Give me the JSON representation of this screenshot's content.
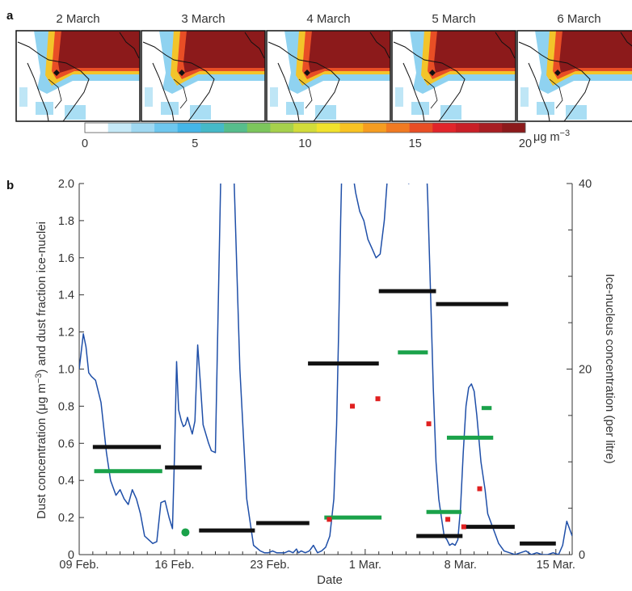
{
  "panel_a": {
    "label": "a",
    "map_dates": [
      "2 March",
      "3 March",
      "4 March",
      "5 March",
      "6 March"
    ],
    "colorbar": {
      "ticks": [
        "0",
        "5",
        "10",
        "15",
        "20"
      ],
      "unit_main": "μg m",
      "unit_exp": "−3",
      "range": [
        0,
        20
      ],
      "colors": [
        "#ffffff",
        "#c6e9f7",
        "#9fd8f1",
        "#6ec7ee",
        "#45b6e8",
        "#45b9c8",
        "#56bd8c",
        "#7cc65c",
        "#a6d14c",
        "#d2dc3a",
        "#f1e22c",
        "#f8c323",
        "#f59d21",
        "#f07a22",
        "#e84e25",
        "#e1252a",
        "#c91f26",
        "#a81e22",
        "#8c1a1b"
      ]
    }
  },
  "chart_data": {
    "type": "line",
    "label": "b",
    "xlabel": "Date",
    "ylabel_left_main": "Dust concentration (μg m",
    "ylabel_left_exp": "−3",
    "ylabel_left_tail": ") and dust fraction ice-nuclei",
    "ylabel_right": "Ice-nucleus concentration (per litre)",
    "ylim_left": [
      0,
      2.0
    ],
    "ylim_right": [
      0,
      40
    ],
    "x_ticks": [
      {
        "day": 0,
        "label": "09 Feb."
      },
      {
        "day": 7,
        "label": "16 Feb."
      },
      {
        "day": 14,
        "label": "23 Feb."
      },
      {
        "day": 21,
        "label": "1 Mar."
      },
      {
        "day": 28,
        "label": "8 Mar."
      },
      {
        "day": 35,
        "label": "15 Mar."
      }
    ],
    "xlim": [
      0,
      36.2
    ],
    "y_ticks_left": [
      "0",
      "0.2",
      "0.4",
      "0.6",
      "0.8",
      "1.0",
      "1.2",
      "1.4",
      "1.6",
      "1.8",
      "2.0"
    ],
    "y_ticks_right": [
      "0",
      "20",
      "40"
    ],
    "dust_line": {
      "color": "#1f4fa8",
      "x": [
        0,
        0.3,
        0.5,
        0.7,
        0.9,
        1.2,
        1.6,
        2.0,
        2.3,
        2.7,
        3.0,
        3.3,
        3.6,
        3.9,
        4.2,
        4.5,
        4.8,
        5.1,
        5.4,
        5.7,
        6.0,
        6.3,
        6.6,
        6.85,
        7.0,
        7.15,
        7.3,
        7.5,
        7.65,
        7.8,
        7.95,
        8.1,
        8.3,
        8.5,
        8.7,
        8.9,
        9.1,
        9.3,
        9.5,
        9.7,
        10.0,
        10.4,
        10.8,
        11.3,
        11.8,
        12.3,
        12.8,
        13.3,
        13.6,
        13.9,
        14.2,
        14.5,
        14.8,
        15.1,
        15.4,
        15.7,
        15.95,
        16.1,
        16.3,
        16.6,
        16.9,
        17.2,
        17.5,
        17.8,
        18.1,
        18.4,
        18.7,
        18.9,
        19.05,
        19.2,
        19.35,
        19.5,
        19.7,
        19.9,
        20.1,
        20.3,
        20.6,
        20.9,
        21.2,
        21.5,
        21.8,
        22.1,
        22.4,
        22.7,
        23.0,
        23.3,
        23.6,
        23.9,
        24.2,
        24.5,
        24.8,
        25.0,
        25.2,
        25.4,
        25.6,
        25.8,
        26.0,
        26.2,
        26.4,
        26.6,
        26.8,
        27.0,
        27.2,
        27.4,
        27.6,
        27.8,
        28.0,
        28.2,
        28.4,
        28.6,
        28.8,
        29.0,
        29.2,
        29.5,
        29.8,
        30.0,
        30.2,
        30.5,
        30.8,
        31.2,
        31.6,
        32.0,
        32.4,
        32.8,
        33.2,
        33.6,
        34.0,
        34.4,
        34.8,
        35.2,
        35.5,
        35.8,
        36.2
      ],
      "y": [
        1.0,
        1.19,
        1.12,
        0.98,
        0.96,
        0.94,
        0.82,
        0.55,
        0.4,
        0.32,
        0.35,
        0.3,
        0.27,
        0.35,
        0.3,
        0.22,
        0.1,
        0.08,
        0.06,
        0.07,
        0.28,
        0.29,
        0.2,
        0.14,
        0.55,
        1.04,
        0.78,
        0.72,
        0.69,
        0.7,
        0.74,
        0.7,
        0.65,
        0.72,
        1.13,
        0.92,
        0.7,
        0.65,
        0.6,
        0.56,
        0.55,
        2.05,
        2.5,
        2.2,
        1.0,
        0.3,
        0.05,
        0.02,
        0.01,
        0.01,
        0.02,
        0.01,
        0.01,
        0.01,
        0.02,
        0.01,
        0.03,
        0.01,
        0.02,
        0.01,
        0.02,
        0.05,
        0.01,
        0.02,
        0.04,
        0.1,
        0.3,
        0.7,
        1.2,
        1.8,
        2.3,
        2.6,
        2.6,
        2.4,
        2.05,
        1.95,
        1.85,
        1.8,
        1.7,
        1.65,
        1.6,
        1.62,
        1.8,
        2.1,
        2.4,
        2.2,
        2.05,
        2.02,
        2.0,
        2.1,
        2.5,
        2.7,
        2.6,
        2.3,
        1.9,
        1.4,
        0.9,
        0.5,
        0.3,
        0.2,
        0.1,
        0.08,
        0.05,
        0.06,
        0.05,
        0.08,
        0.25,
        0.55,
        0.8,
        0.9,
        0.92,
        0.88,
        0.75,
        0.5,
        0.35,
        0.22,
        0.18,
        0.12,
        0.06,
        0.02,
        0.01,
        0.0,
        0.01,
        0.02,
        0.0,
        0.01,
        0.0,
        0.0,
        0.01,
        0.0,
        0.05,
        0.18,
        0.1
      ]
    },
    "dust_bars": {
      "color": "#111111",
      "segments": [
        {
          "x0": 1.0,
          "x1": 6.0,
          "y": 0.58
        },
        {
          "x0": 6.3,
          "x1": 9.0,
          "y": 0.47
        },
        {
          "x0": 8.8,
          "x1": 12.9,
          "y": 0.13
        },
        {
          "x0": 13.0,
          "x1": 16.9,
          "y": 0.17
        },
        {
          "x0": 16.8,
          "x1": 22.0,
          "y": 1.03
        },
        {
          "x0": 22.0,
          "x1": 26.2,
          "y": 1.42
        },
        {
          "x0": 26.2,
          "x1": 31.5,
          "y": 1.35
        },
        {
          "x0": 33.6,
          "x1": 38.2,
          "y": 0.1
        },
        {
          "x0": 38.2,
          "x1": 43.4,
          "y": 0.15
        },
        {
          "x0": 43.9,
          "x1": 47.5,
          "y": 0.06
        }
      ]
    },
    "ice_fraction_bars": {
      "color": "#1aa24a",
      "segments": [
        {
          "x0": 1.1,
          "x1": 6.1,
          "y": 0.45
        },
        {
          "x0": 18.0,
          "x1": 22.2,
          "y": 0.2
        },
        {
          "x0": 23.4,
          "x1": 25.6,
          "y": 1.09
        },
        {
          "x0": 27.0,
          "x1": 30.4,
          "y": 0.63
        },
        {
          "x0": 34.6,
          "x1": 38.1,
          "y": 0.23
        },
        {
          "x0": 40.1,
          "x1": 41.1,
          "y": 0.79
        }
      ],
      "point": {
        "x": 7.8,
        "y": 0.12
      }
    },
    "ice_nucleus_points": {
      "color": "#e02020",
      "points": [
        {
          "x": 23.6,
          "y": 16.0
        },
        {
          "x": 25.8,
          "y": 16.8
        },
        {
          "x": 30.2,
          "y": 14.1
        },
        {
          "x": 21.6,
          "y": 3.8
        },
        {
          "x": 34.7,
          "y": 3.8
        },
        {
          "x": 36.2,
          "y": 3.0
        },
        {
          "x": 37.7,
          "y": 7.1
        }
      ]
    }
  }
}
